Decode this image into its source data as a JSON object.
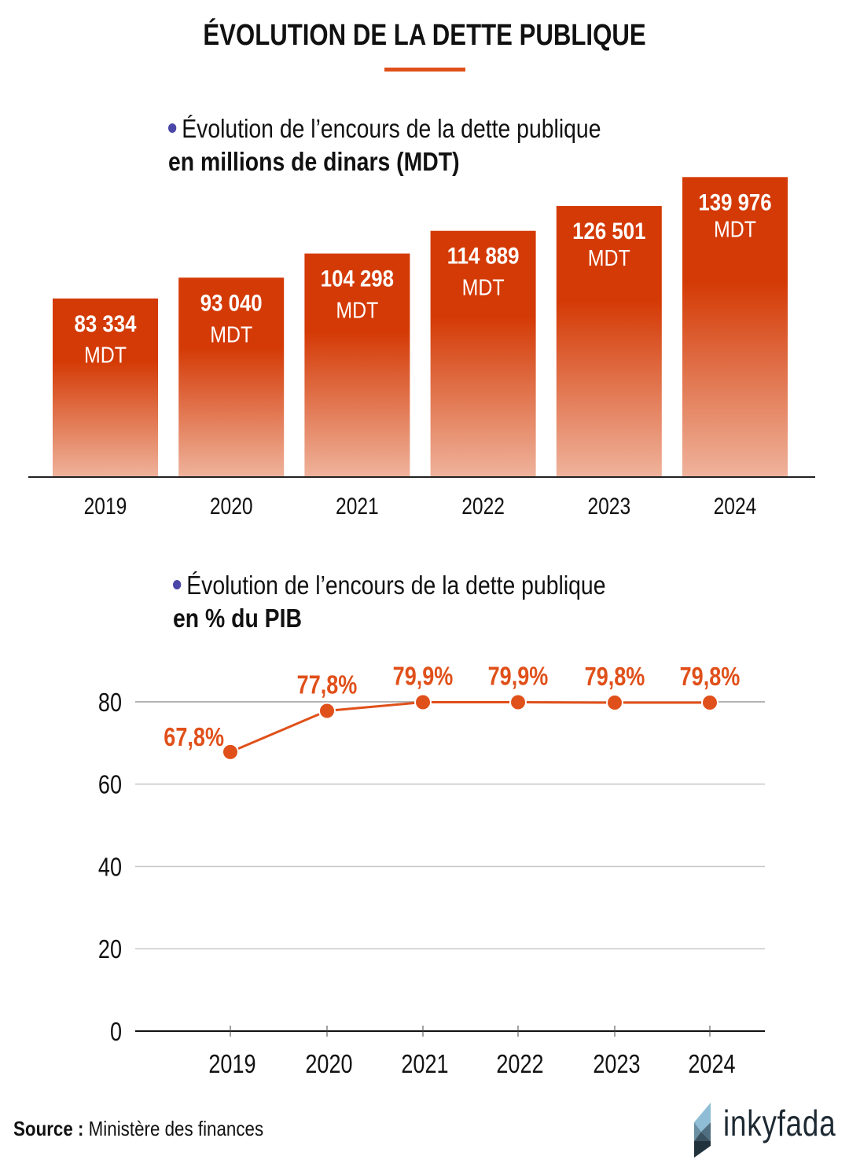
{
  "header": {
    "title": "ÉVOLUTION DE LA DETTE PUBLIQUE",
    "accent_color": "#e0501a"
  },
  "section1": {
    "bullet_color": "#4a47a8",
    "line1": "Évolution de l’encours de la dette publique",
    "line2": "en millions de dinars (MDT)"
  },
  "section2": {
    "bullet_color": "#4a47a8",
    "line1": "Évolution de l’encours de la dette publique",
    "line2": "en % du PIB"
  },
  "chart_data": [
    {
      "type": "bar",
      "title": "Évolution de l’encours de la dette publique en millions de dinars (MDT)",
      "categories": [
        "2019",
        "2020",
        "2021",
        "2022",
        "2023",
        "2024"
      ],
      "values": [
        83334,
        93040,
        104298,
        114889,
        126501,
        139976
      ],
      "value_labels": [
        "83 334",
        "93 040",
        "104 298",
        "114 889",
        "126 501",
        "139 976"
      ],
      "unit_label": "MDT",
      "xlabel": "",
      "ylabel": "",
      "grid": false,
      "bar_color_top": "#d43a05",
      "bar_color_bottom": "#efb39c"
    },
    {
      "type": "line",
      "title": "Évolution de l’encours de la dette publique en % du PIB",
      "x": [
        "2019",
        "2020",
        "2021",
        "2022",
        "2023",
        "2024"
      ],
      "values": [
        67.8,
        77.8,
        79.9,
        79.9,
        79.8,
        79.8
      ],
      "value_labels": [
        "67,8%",
        "77,8%",
        "79,9%",
        "79,9%",
        "79,8%",
        "79,8%"
      ],
      "ylim": [
        0,
        80
      ],
      "yticks": [
        0,
        20,
        40,
        60,
        80
      ],
      "xlabel": "",
      "ylabel": "",
      "grid": true,
      "line_color": "#e0501a"
    }
  ],
  "footer": {
    "source_label": "Source :",
    "source_text": " Ministère des finances",
    "brand": "inkyfada"
  }
}
